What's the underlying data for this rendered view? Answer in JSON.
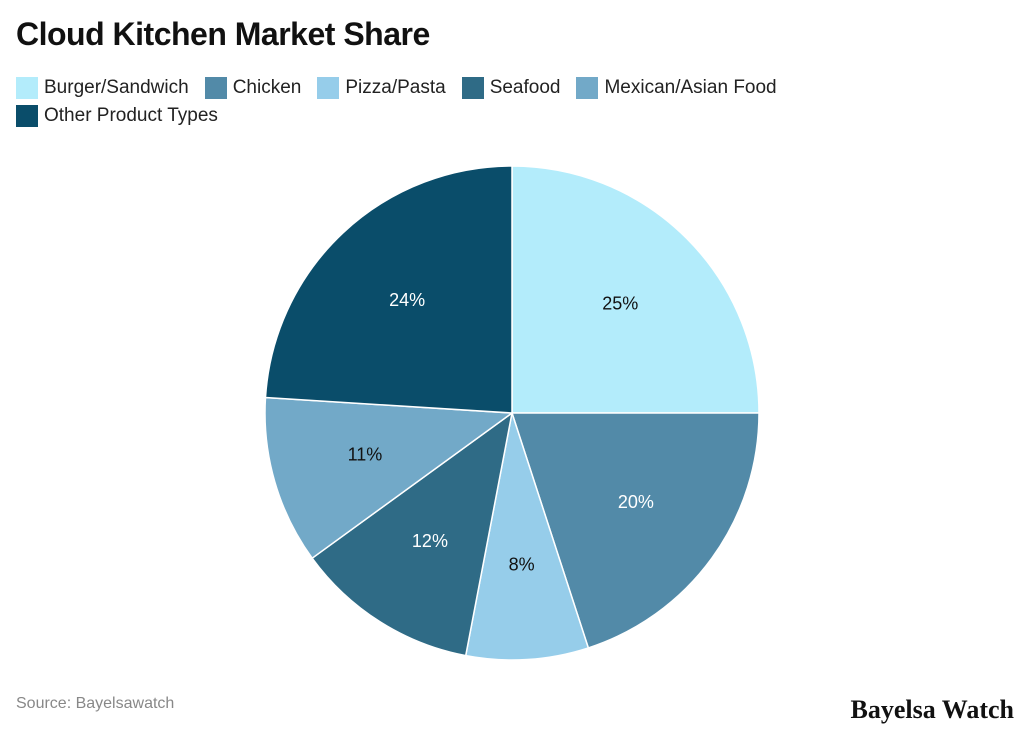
{
  "chart_data": {
    "type": "pie",
    "title": "Cloud Kitchen Market Share",
    "categories": [
      "Burger/Sandwich",
      "Chicken",
      "Pizza/Pasta",
      "Seafood",
      "Mexican/Asian Food",
      "Other Product Types"
    ],
    "values": [
      25,
      20,
      8,
      12,
      11,
      24
    ],
    "value_labels": [
      "25%",
      "20%",
      "8%",
      "12%",
      "11%",
      "24%"
    ],
    "colors": [
      "#b3ecfb",
      "#528aa8",
      "#96cdea",
      "#2f6b86",
      "#72a9c8",
      "#0a4d6a"
    ],
    "legend": "top",
    "source": "Source: Bayelsawatch",
    "brand": "Bayelsa Watch"
  }
}
